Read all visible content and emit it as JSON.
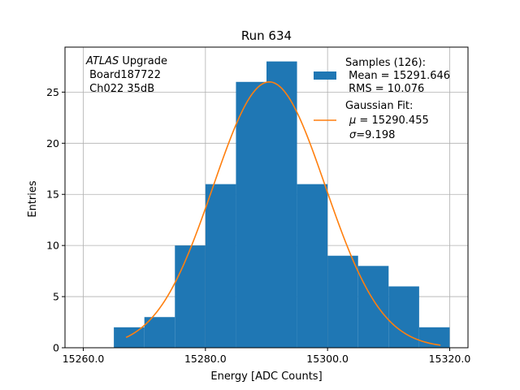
{
  "chart_data": {
    "type": "bar",
    "title": "Run 634",
    "xlabel": "Energy [ADC Counts]",
    "ylabel": "Entries",
    "xlim": [
      15257.0,
      15323.0
    ],
    "ylim": [
      0,
      29.4
    ],
    "grid": true,
    "x_ticks": [
      15260.0,
      15280.0,
      15300.0,
      15320.0
    ],
    "x_tick_labels": [
      "15260.0",
      "15280.0",
      "15300.0",
      "15320.0"
    ],
    "y_ticks": [
      0,
      5,
      10,
      15,
      20,
      25
    ],
    "y_tick_labels": [
      "0",
      "5",
      "10",
      "15",
      "20",
      "25"
    ],
    "histogram": {
      "bin_edges": [
        15265,
        15270,
        15275,
        15280,
        15285,
        15290,
        15295,
        15300,
        15305,
        15310,
        15315,
        15320
      ],
      "counts": [
        2,
        3,
        10,
        16,
        26,
        28,
        16,
        9,
        8,
        6,
        2
      ],
      "color": "#1f77b4"
    },
    "fit": {
      "mu": 15290.455,
      "sigma": 9.198,
      "peak": 26.0,
      "x_range": [
        15267.0,
        15318.5
      ],
      "color": "#ff7f0e"
    },
    "annotation": {
      "italic": "ATLAS",
      "rest": " Upgrade",
      "line2": " Board187722",
      "line3": " Ch022 35dB"
    },
    "legend": {
      "position": "top-right",
      "samples_lines": [
        "Samples (126):",
        " Mean = 15291.646",
        " RMS = 10.076"
      ],
      "fit_title": "Gaussian Fit:",
      "fit_mu": " = 15290.455",
      "fit_sigma": "=9.198",
      "mu_symbol": "μ",
      "sigma_symbol": "σ"
    }
  }
}
